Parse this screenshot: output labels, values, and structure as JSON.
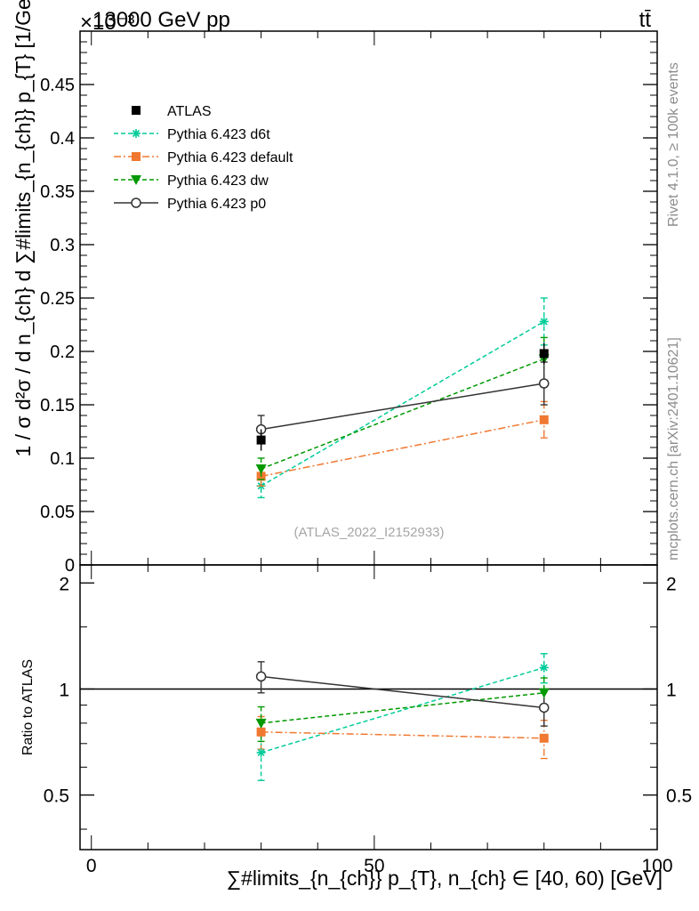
{
  "header": {
    "energy_label": "13000 GeV pp",
    "process_label": "tt̄",
    "exponent_label": "×10⁻³"
  },
  "side_labels": {
    "rivet": "Rivet 4.1.0, ≥ 100k events",
    "mcplots": "mcplots.cern.ch [arXiv:2401.10621]"
  },
  "reference_label": "(ATLAS_2022_I2152933)",
  "axes": {
    "ylabel_main": "1 / σ d²σ / d n_{ch} d ∑#limits_{n_{ch}} p_{T} [1/GeV]",
    "ylabel_ratio": "Ratio to ATLAS",
    "xlabel": "∑#limits_{n_{ch}} p_{T}, n_{ch} ∈ [40, 60) [GeV]"
  },
  "chart_data": [
    {
      "type": "scatter",
      "title": "13000 GeV pp  tt̄",
      "x_range": [
        -2,
        100
      ],
      "ylim": [
        0,
        0.5
      ],
      "y_scale_factor": "1e-3",
      "y_ticks": [
        0,
        0.05,
        0.1,
        0.15,
        0.2,
        0.25,
        0.3,
        0.35,
        0.4,
        0.45
      ],
      "y_tick_labels": [
        "0",
        "0.05",
        "0.1",
        "0.15",
        "0.2",
        "0.25",
        "0.3",
        "0.35",
        "0.4",
        "0.45"
      ],
      "x": [
        30,
        80
      ],
      "legend_position": "top-left",
      "series": [
        {
          "name": "ATLAS",
          "color": "#000000",
          "marker": "square-filled",
          "line": "none",
          "values": [
            0.117,
            0.198
          ],
          "err_lo": [
            0.0,
            0.0
          ],
          "err_hi": [
            0.0,
            0.0
          ]
        },
        {
          "name": "Pythia 6.423 d6t",
          "color": "#00cc99",
          "marker": "asterisk",
          "line": "dashed",
          "values": [
            0.074,
            0.228
          ],
          "err_lo": [
            0.011,
            0.022
          ],
          "err_hi": [
            0.011,
            0.022
          ]
        },
        {
          "name": "Pythia 6.423 default",
          "color": "#f07830",
          "marker": "square-filled",
          "line": "dashdot",
          "values": [
            0.083,
            0.136
          ],
          "err_lo": [
            0.009,
            0.017
          ],
          "err_hi": [
            0.009,
            0.017
          ]
        },
        {
          "name": "Pythia 6.423 dw",
          "color": "#009900",
          "marker": "triangle-down",
          "line": "dashed",
          "values": [
            0.09,
            0.193
          ],
          "err_lo": [
            0.01,
            0.02
          ],
          "err_hi": [
            0.01,
            0.02
          ]
        },
        {
          "name": "Pythia 6.423 p0",
          "color": "#333333",
          "marker": "circle-open",
          "line": "solid",
          "values": [
            0.127,
            0.17
          ],
          "err_lo": [
            0.013,
            0.02
          ],
          "err_hi": [
            0.013,
            0.02
          ]
        }
      ]
    },
    {
      "type": "scatter",
      "title": "Ratio to ATLAS",
      "x_range": [
        -2,
        100
      ],
      "ylim": [
        0.35,
        2.25
      ],
      "y_scale": "log",
      "y_ticks": [
        0.5,
        1,
        2
      ],
      "y_tick_labels": [
        "0.5",
        "1",
        "2"
      ],
      "x_ticks": [
        0,
        50,
        100
      ],
      "x_tick_labels": [
        "0",
        "50",
        "100"
      ],
      "x": [
        30,
        80
      ],
      "reference_line": 1,
      "series": [
        {
          "name": "Pythia 6.423 d6t",
          "color": "#00cc99",
          "line": "dashed",
          "values": [
            0.66,
            1.15
          ],
          "err_lo": [
            0.11,
            0.11
          ],
          "err_hi": [
            0.11,
            0.11
          ]
        },
        {
          "name": "Pythia 6.423 default",
          "color": "#f07830",
          "line": "dashdot",
          "values": [
            0.755,
            0.725
          ],
          "err_lo": [
            0.08,
            0.09
          ],
          "err_hi": [
            0.08,
            0.09
          ]
        },
        {
          "name": "Pythia 6.423 dw",
          "color": "#009900",
          "line": "dashed",
          "values": [
            0.8,
            0.975
          ],
          "err_lo": [
            0.09,
            0.1
          ],
          "err_hi": [
            0.09,
            0.1
          ]
        },
        {
          "name": "Pythia 6.423 p0",
          "color": "#333333",
          "line": "solid",
          "values": [
            1.085,
            0.885
          ],
          "err_lo": [
            0.11,
            0.1
          ],
          "err_hi": [
            0.11,
            0.1
          ]
        }
      ]
    }
  ]
}
